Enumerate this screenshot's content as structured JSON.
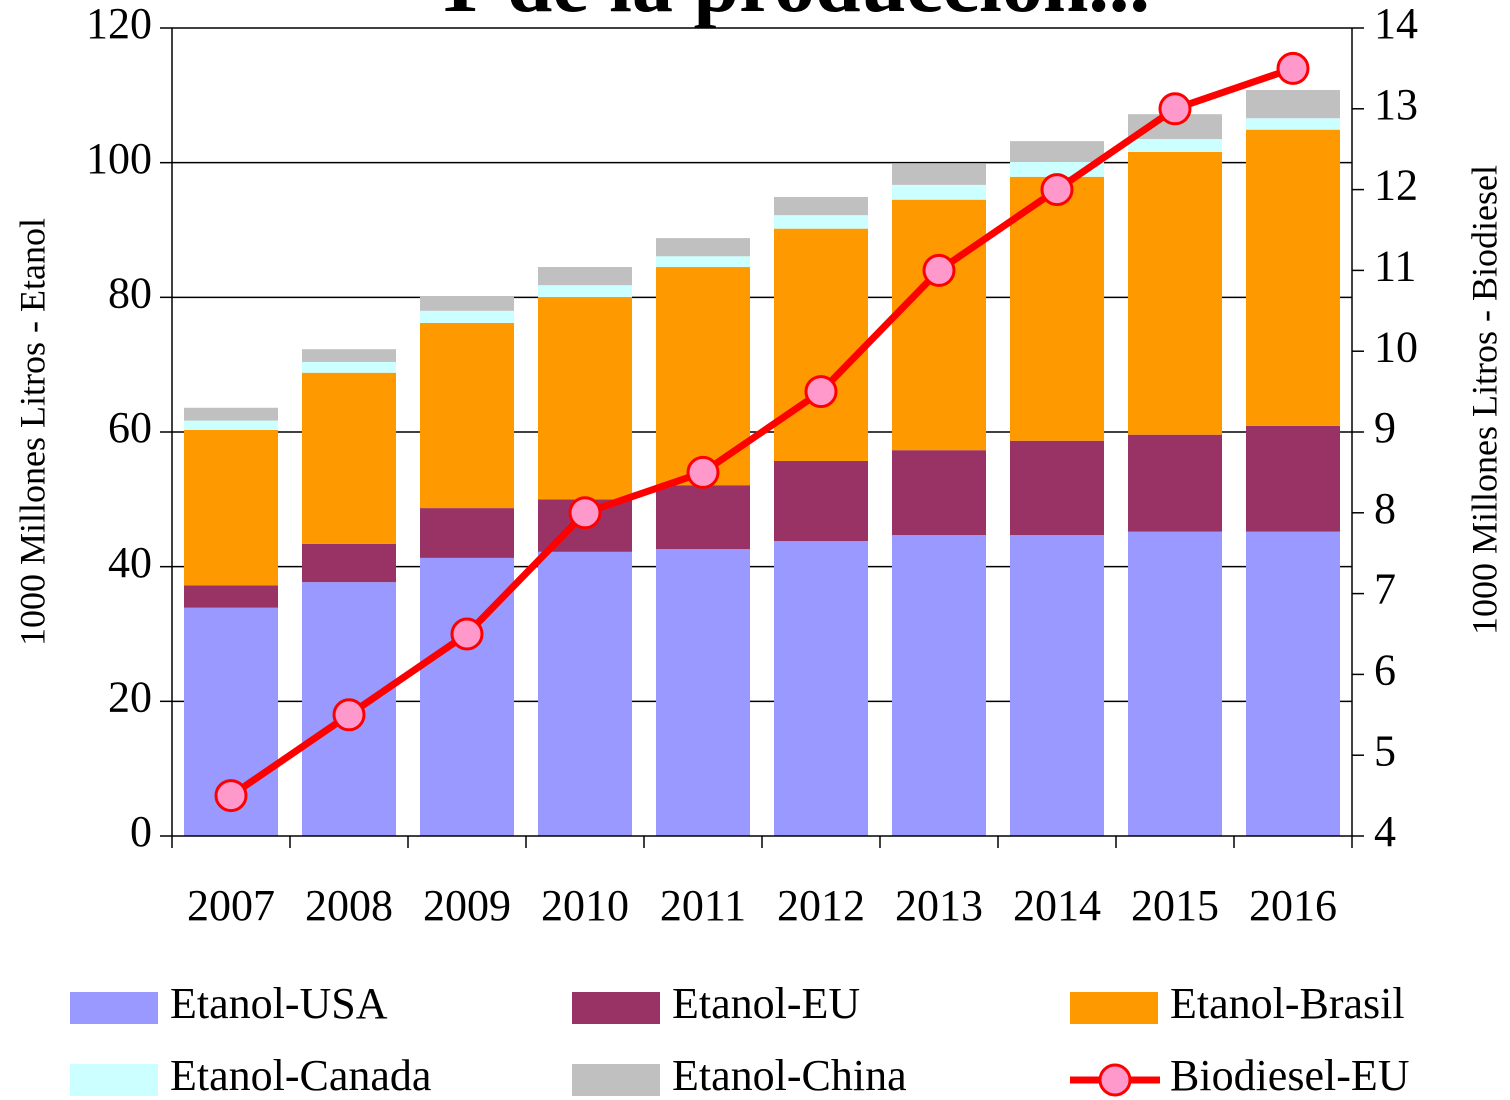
{
  "chart_data": {
    "type": "bar",
    "stacked": true,
    "title": "Y de la producción...",
    "y_label": "1000 Millones Litros - Etanol",
    "y2_label": "1000 Millones Litros - Biodiesel",
    "categories": [
      "2007",
      "2008",
      "2009",
      "2010",
      "2011",
      "2012",
      "2013",
      "2014",
      "2015",
      "2016"
    ],
    "series": [
      {
        "name": "Etanol-USA",
        "color": "#9999ff",
        "values": [
          33.9,
          37.7,
          41.3,
          42.2,
          42.6,
          43.8,
          44.7,
          44.7,
          45.2,
          45.2
        ]
      },
      {
        "name": "Etanol-EU",
        "color": "#993366",
        "values": [
          3.3,
          5.7,
          7.4,
          7.8,
          9.5,
          11.9,
          12.6,
          14.0,
          14.4,
          15.7
        ]
      },
      {
        "name": "Etanol-Brasil",
        "color": "#ff9900",
        "values": [
          23.1,
          25.4,
          27.5,
          30.0,
          32.4,
          34.5,
          37.2,
          39.2,
          42.0,
          44.0
        ]
      },
      {
        "name": "Etanol-Canada",
        "color": "#ccffff",
        "values": [
          1.4,
          1.6,
          1.8,
          1.8,
          1.6,
          2.0,
          2.2,
          2.2,
          1.9,
          1.7
        ]
      },
      {
        "name": "Etanol-China",
        "color": "#c0c0c0",
        "values": [
          1.9,
          1.9,
          2.2,
          2.7,
          2.7,
          2.7,
          3.1,
          3.1,
          3.7,
          4.2
        ]
      },
      {
        "name": "Biodiesel-EU",
        "color": "#ff0000",
        "marker_color": "#ff99cc",
        "type": "line",
        "axis": "y2",
        "values": [
          4.5,
          5.5,
          6.5,
          8.0,
          8.5,
          9.5,
          11.0,
          12.0,
          13.0,
          13.5
        ]
      }
    ],
    "ylim": [
      0,
      120
    ],
    "yticks": [
      0,
      20,
      40,
      60,
      80,
      100,
      120
    ],
    "y2lim": [
      4,
      14
    ],
    "y2ticks": [
      4,
      5,
      6,
      7,
      8,
      9,
      10,
      11,
      12,
      13,
      14
    ],
    "grid": true,
    "legend": "bottom"
  }
}
